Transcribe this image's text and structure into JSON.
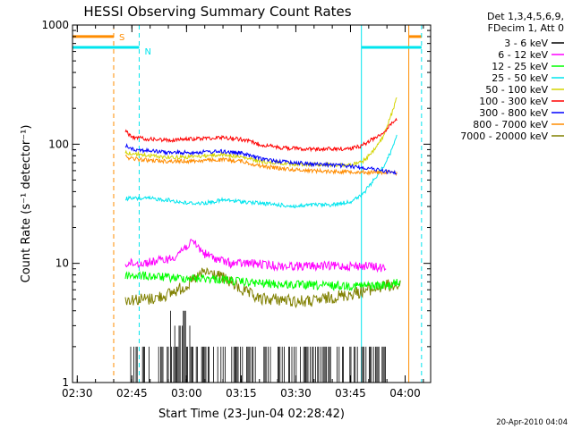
{
  "chart_data": {
    "type": "line",
    "title": "HESSI Observing Summary Count Rates",
    "xlabel": "Start Time (23-Jun-04 02:28:42)",
    "ylabel": "Count Rate (s⁻¹ detector⁻¹)",
    "y_scale": "log",
    "ylim": [
      1,
      1000
    ],
    "xlim": [
      "02:28:42",
      "04:07:00"
    ],
    "x_ticks": [
      "02:30",
      "02:45",
      "03:00",
      "03:15",
      "03:30",
      "03:45",
      "04:00"
    ],
    "y_ticks": [
      "1",
      "10",
      "100",
      "1000"
    ],
    "legend_position": "right",
    "legend_header": [
      "Det 1,3,4,5,6,9,",
      "FDecim 1, Att 0"
    ],
    "footer_date": "20-Apr-2010 04:04",
    "flag_labels": {
      "saa": "S",
      "night": "N"
    },
    "flags": [
      {
        "label": "S",
        "color": "#ff8c00",
        "y": 800,
        "intervals": [
          [
            "02:28:42",
            "02:40:00"
          ],
          [
            "04:01:00",
            "04:04:30"
          ]
        ],
        "boundaries": [
          "02:40:00",
          "04:01:00"
        ]
      },
      {
        "label": "N",
        "color": "#00e5ee",
        "y": 650,
        "intervals": [
          [
            "02:28:42",
            "02:47:00"
          ],
          [
            "03:48:00",
            "04:04:30"
          ]
        ],
        "boundaries": [
          "02:47:00",
          "03:48:00",
          "04:04:30"
        ]
      }
    ],
    "series": [
      {
        "name": "3 - 6 keV",
        "color": "#000000",
        "x": [
          "02:43",
          "02:50",
          "02:58",
          "03:00",
          "03:02",
          "03:05",
          "03:10",
          "03:15",
          "03:20",
          "03:25",
          "03:30",
          "03:35",
          "03:40",
          "03:45",
          "03:50",
          "03:55"
        ],
        "y": [
          1.5,
          1.7,
          2.5,
          3.5,
          3.5,
          2.5,
          2,
          1.8,
          1.7,
          1.6,
          1.6,
          1.5,
          1.6,
          1.5,
          1.5,
          1.4
        ]
      },
      {
        "name": "6 - 12 keV",
        "color": "#ff00ff",
        "x": [
          "02:43",
          "02:48",
          "02:52",
          "02:56",
          "03:00",
          "03:02",
          "03:05",
          "03:08",
          "03:12",
          "03:18",
          "03:25",
          "03:32",
          "03:40",
          "03:45",
          "03:50",
          "03:55"
        ],
        "y": [
          10,
          10,
          10.5,
          11,
          14,
          15,
          12,
          11,
          10,
          10,
          9.5,
          9.5,
          9.5,
          9.5,
          9.5,
          9
        ]
      },
      {
        "name": "12 - 25 keV",
        "color": "#00ff00",
        "x": [
          "02:43",
          "02:50",
          "02:55",
          "03:00",
          "03:05",
          "03:10",
          "03:15",
          "03:20",
          "03:25",
          "03:30",
          "03:35",
          "03:40",
          "03:45",
          "03:50",
          "03:55",
          "03:59"
        ],
        "y": [
          8,
          7.8,
          7.6,
          7.5,
          7.5,
          7.3,
          7,
          6.8,
          6.7,
          6.6,
          6.5,
          6.5,
          6.5,
          6.5,
          6.5,
          7
        ]
      },
      {
        "name": "25 - 50 keV",
        "color": "#00e5ee",
        "x": [
          "02:43",
          "02:50",
          "02:55",
          "03:00",
          "03:05",
          "03:10",
          "03:15",
          "03:20",
          "03:25",
          "03:30",
          "03:35",
          "03:40",
          "03:45",
          "03:48",
          "03:51",
          "03:54",
          "03:56",
          "03:58"
        ],
        "y": [
          35,
          35,
          34,
          32,
          32,
          34,
          33,
          32,
          31,
          30,
          31,
          31,
          33,
          37,
          48,
          65,
          85,
          130
        ]
      },
      {
        "name": "50 - 100 keV",
        "color": "#d4d400",
        "x": [
          "02:43",
          "02:50",
          "02:55",
          "03:00",
          "03:05",
          "03:10",
          "03:15",
          "03:20",
          "03:25",
          "03:30",
          "03:35",
          "03:40",
          "03:45",
          "03:48",
          "03:51",
          "03:54",
          "03:56",
          "03:58"
        ],
        "y": [
          85,
          80,
          78,
          78,
          80,
          82,
          78,
          72,
          70,
          68,
          68,
          67,
          67,
          70,
          85,
          115,
          170,
          260
        ]
      },
      {
        "name": "100 - 300 keV",
        "color": "#ff0000",
        "x": [
          "02:43",
          "02:45",
          "02:50",
          "02:55",
          "03:00",
          "03:05",
          "03:10",
          "03:15",
          "03:20",
          "03:25",
          "03:30",
          "03:35",
          "03:40",
          "03:45",
          "03:48",
          "03:51",
          "03:54",
          "03:56",
          "03:58"
        ],
        "y": [
          130,
          115,
          110,
          108,
          110,
          112,
          114,
          110,
          100,
          94,
          92,
          91,
          91,
          92,
          97,
          110,
          125,
          145,
          165
        ]
      },
      {
        "name": "300 - 800 keV",
        "color": "#0000ff",
        "x": [
          "02:43",
          "02:46",
          "02:50",
          "02:55",
          "03:00",
          "03:05",
          "03:10",
          "03:15",
          "03:20",
          "03:25",
          "03:30",
          "03:35",
          "03:40",
          "03:45",
          "03:48",
          "03:51",
          "03:54",
          "03:56",
          "03:58"
        ],
        "y": [
          98,
          90,
          88,
          85,
          85,
          86,
          87,
          84,
          76,
          72,
          70,
          68,
          67,
          65,
          64,
          62,
          60,
          58,
          58
        ]
      },
      {
        "name": "800 - 7000 keV",
        "color": "#ff8c00",
        "x": [
          "02:43",
          "02:46",
          "02:50",
          "02:55",
          "03:00",
          "03:05",
          "03:10",
          "03:15",
          "03:20",
          "03:25",
          "03:30",
          "03:35",
          "03:40",
          "03:45",
          "03:50",
          "03:55",
          "03:58"
        ],
        "y": [
          78,
          75,
          73,
          72,
          72,
          73,
          74,
          72,
          66,
          63,
          61,
          60,
          59,
          59,
          58,
          58,
          57
        ]
      },
      {
        "name": "7000 - 20000 keV",
        "color": "#808000",
        "x": [
          "02:43",
          "02:46",
          "02:50",
          "02:55",
          "03:00",
          "03:05",
          "03:08",
          "03:12",
          "03:15",
          "03:20",
          "03:25",
          "03:30",
          "03:35",
          "03:40",
          "03:45",
          "03:50",
          "03:55",
          "03:59"
        ],
        "y": [
          5,
          5,
          5,
          5.5,
          6.5,
          8.5,
          8,
          7,
          6,
          5,
          5,
          4.8,
          4.8,
          5.2,
          5.5,
          6,
          6.5,
          6.5
        ]
      }
    ]
  }
}
